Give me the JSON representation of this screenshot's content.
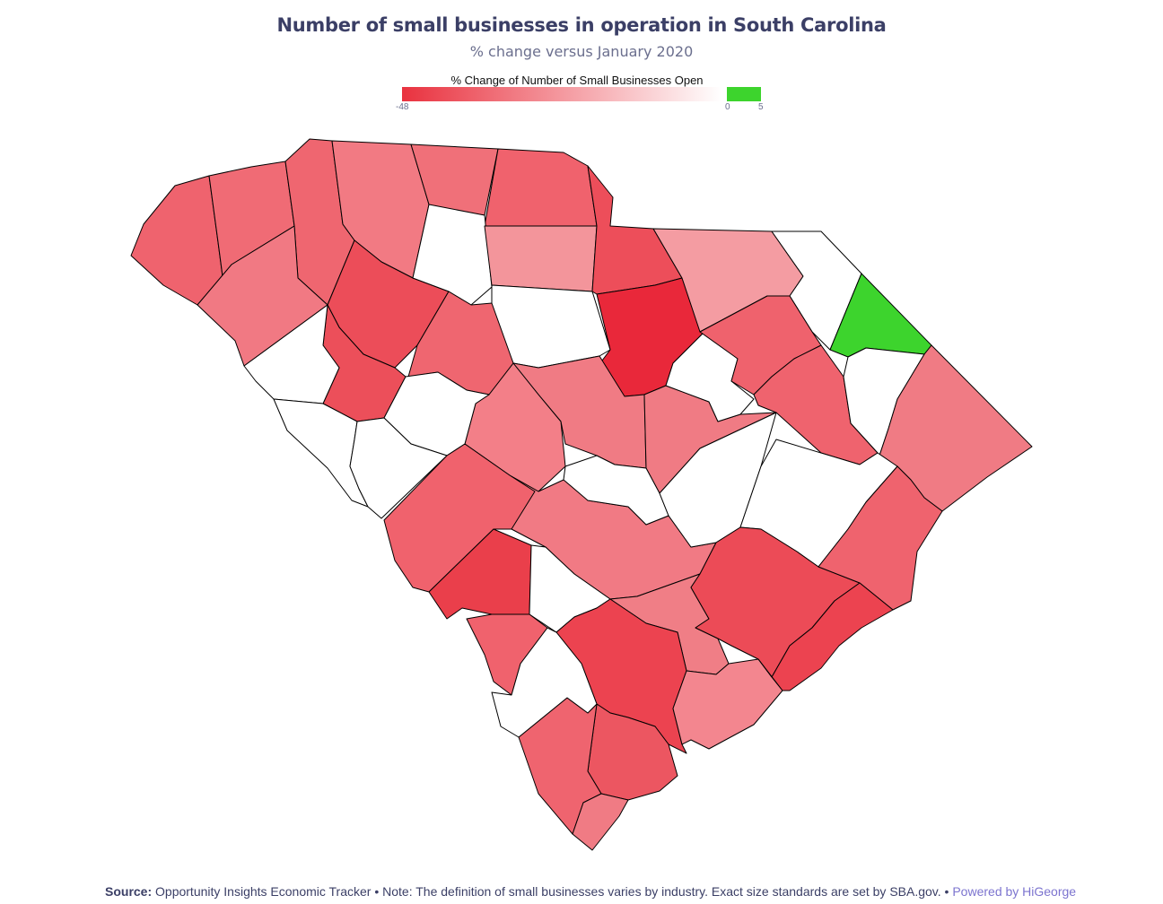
{
  "title": "Number of small businesses in operation in South Carolina",
  "subtitle": "% change versus January 2020",
  "legend": {
    "title": "% Change of Number of Small Businesses Open",
    "min_label": "-48",
    "zero_label": "0",
    "max_label": "5",
    "neg_color": "#e9323f",
    "mid_color": "#ffffff",
    "pos_color": "#3dd42d"
  },
  "footer": {
    "source_label": "Source:",
    "source_text": " Opportunity Insights Economic Tracker • Note: The definition of small businesses varies by industry. Exact size standards are set by SBA.gov. • ",
    "powered_by": "Powered by HiGeorge"
  },
  "map_data": {
    "colors": {
      "c1": "#ef636e",
      "c2": "#f06b75",
      "c3": "#ef6670",
      "c4": "#f27a83",
      "c5": "#f17983",
      "c6": "#ec4d59",
      "c7": "#f07079",
      "c8": "#f0626d",
      "c9": "#ffffff",
      "c10": "#f3959b",
      "c11": "#ffffff",
      "c12": "#ed4e5a",
      "c13": "#e9283a",
      "c14": "#f49ca2",
      "c15": "#ffffff",
      "c16": "#3dd42d",
      "c17": "#ec4f5a",
      "c18": "#ffffff",
      "c19": "#ef6670",
      "c20": "#f07b84",
      "c21": "#f37f88",
      "c22": "#f07b84",
      "c23": "#ffffff",
      "c24": "#ffffff",
      "c25": "#ef626d",
      "c26": "#ef636e",
      "c27": "#ffffff",
      "c28": "#ffffff",
      "c29": "#f07b84",
      "c30": "#ffffff",
      "c31": "#f17a84",
      "c32": "#ffffff",
      "c33": "#ffffff",
      "c34": "#f0626d",
      "c35": "#ea3f4b",
      "c36": "#ffffff",
      "c37": "#ffffff",
      "c38": "#f07e86",
      "c39": "#ec4b57",
      "c40": "#ef636e",
      "c41": "#ec4350",
      "c42": "#f3868f",
      "c43": "#ec4350",
      "c44": "#ec5661",
      "c45": "#ef646f",
      "c46": "#f07b84",
      "c47": "#f0626d",
      "c48": "#ffffff"
    }
  }
}
